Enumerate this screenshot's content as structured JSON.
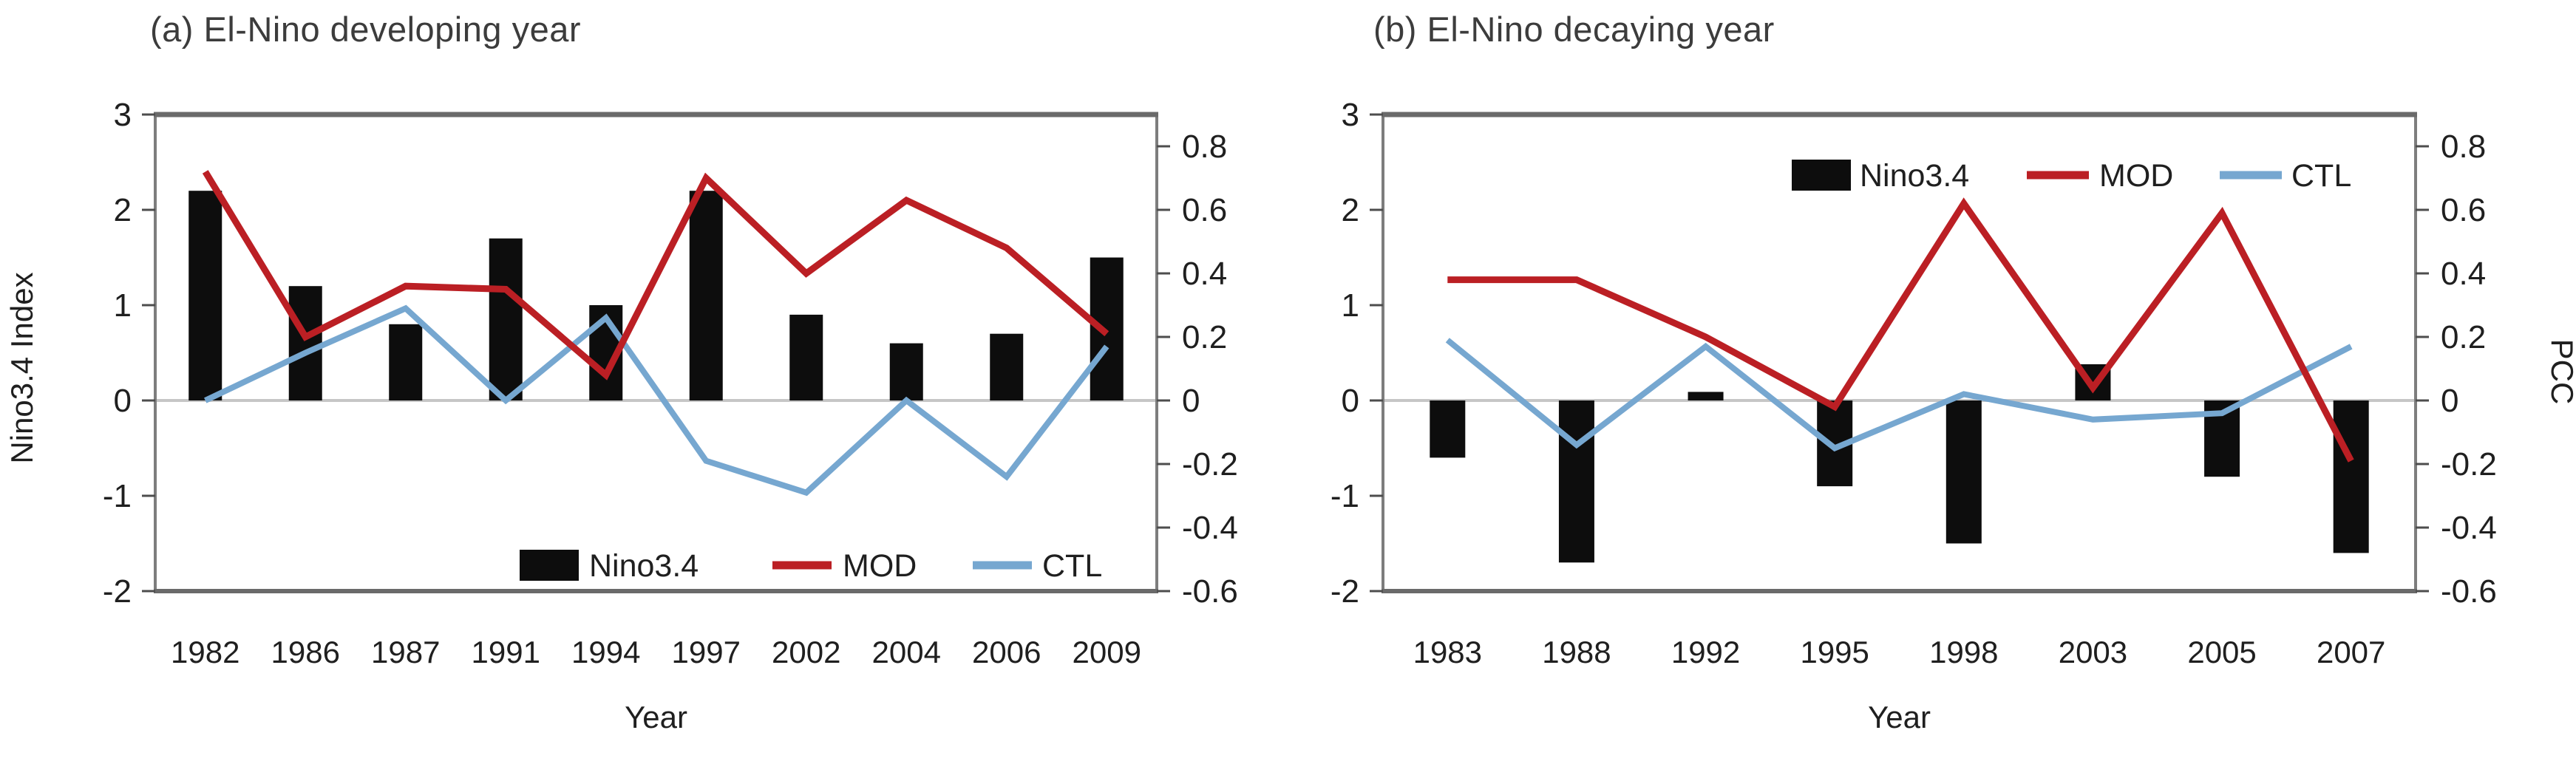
{
  "figure": {
    "background": "#ffffff",
    "panel_count": 2
  },
  "colors": {
    "bar": "#0d0d0d",
    "mod_line": "#bb1f24",
    "ctl_line": "#76a7d0",
    "zero_line": "#c6c6c6",
    "frame": "#7d7d7d",
    "frame_heavy": "#6a6a6a",
    "tick": "#4d4d4d",
    "tick_text": "#1f1f1f",
    "title_text": "#3c3c3c"
  },
  "chart_data": [
    {
      "panel_label": "a",
      "type": "bar+line",
      "title": "(a) El-Nino developing year",
      "xlabel": "Year",
      "categories": [
        "1982",
        "1986",
        "1987",
        "1991",
        "1994",
        "1997",
        "2002",
        "2004",
        "2006",
        "2009"
      ],
      "left_axis": {
        "label": "Nino3.4 Index",
        "ticks": [
          "3",
          "2",
          "1",
          "0",
          "-1",
          "-2"
        ],
        "range": [
          -2,
          3
        ]
      },
      "right_axis": {
        "label": "",
        "ticks": [
          "0.8",
          "0.6",
          "0.4",
          "0.2",
          "0",
          "-0.2",
          "-0.4",
          "-0.6"
        ],
        "range": [
          -0.6,
          0.867
        ]
      },
      "grid": "off",
      "series": [
        {
          "name": "Nino3.4",
          "type": "bar",
          "axis": "left",
          "values": [
            2.2,
            1.2,
            0.8,
            1.7,
            1.0,
            2.2,
            0.9,
            0.6,
            0.7,
            1.5
          ]
        },
        {
          "name": "MOD",
          "type": "line",
          "axis": "right",
          "values": [
            0.72,
            0.2,
            0.36,
            0.35,
            0.08,
            0.7,
            0.4,
            0.63,
            0.48,
            0.21
          ]
        },
        {
          "name": "CTL",
          "type": "line",
          "axis": "right",
          "values": [
            0.0,
            0.15,
            0.29,
            0.0,
            0.26,
            -0.19,
            -0.29,
            0.0,
            -0.24,
            0.17
          ]
        }
      ],
      "legend": {
        "position": "inside-bottom",
        "items": [
          "Nino3.4",
          "MOD",
          "CTL"
        ]
      }
    },
    {
      "panel_label": "b",
      "type": "bar+line",
      "title": "(b) El-Nino decaying year",
      "xlabel": "Year",
      "categories": [
        "1983",
        "1988",
        "1992",
        "1995",
        "1998",
        "2003",
        "2005",
        "2007"
      ],
      "left_axis": {
        "label": "",
        "ticks": [
          "3",
          "2",
          "1",
          "0",
          "-1",
          "-2"
        ],
        "range": [
          -2,
          3
        ]
      },
      "right_axis": {
        "label": "PCC",
        "ticks": [
          "0.8",
          "0.6",
          "0.4",
          "0.2",
          "0",
          "-0.2",
          "-0.4",
          "-0.6"
        ],
        "range": [
          -0.6,
          0.867
        ]
      },
      "grid": "off",
      "series": [
        {
          "name": "Nino3.4",
          "type": "bar",
          "axis": "left",
          "values": [
            -0.6,
            -1.7,
            0.09,
            -0.9,
            -1.5,
            0.38,
            -0.8,
            -1.6
          ]
        },
        {
          "name": "MOD",
          "type": "line",
          "axis": "right",
          "values": [
            0.38,
            0.38,
            0.2,
            -0.02,
            0.62,
            0.04,
            0.59,
            -0.19
          ]
        },
        {
          "name": "CTL",
          "type": "line",
          "axis": "right",
          "values": [
            0.19,
            -0.14,
            0.17,
            -0.15,
            0.02,
            -0.06,
            -0.04,
            0.17
          ]
        }
      ],
      "legend": {
        "position": "inside-top",
        "items": [
          "Nino3.4",
          "MOD",
          "CTL"
        ]
      }
    }
  ]
}
